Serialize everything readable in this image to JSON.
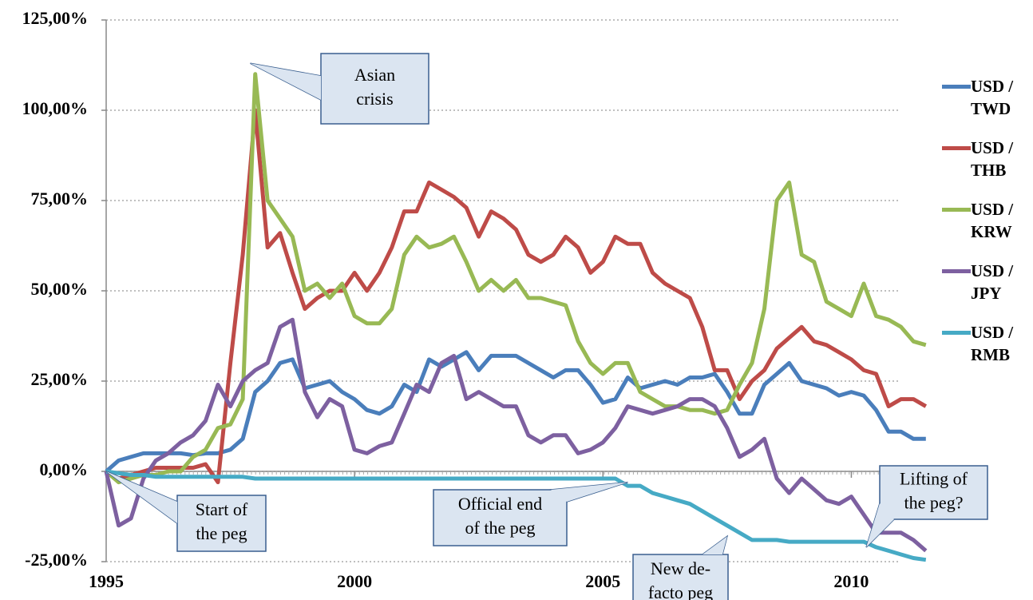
{
  "chart_data": {
    "type": "line",
    "x": [
      1995,
      1995.25,
      1995.5,
      1995.75,
      1996,
      1996.25,
      1996.5,
      1996.75,
      1997,
      1997.25,
      1997.5,
      1997.75,
      1998,
      1998.25,
      1998.5,
      1998.75,
      1999,
      1999.25,
      1999.5,
      1999.75,
      2000,
      2000.25,
      2000.5,
      2000.75,
      2001,
      2001.25,
      2001.5,
      2001.75,
      2002,
      2002.25,
      2002.5,
      2002.75,
      2003,
      2003.25,
      2003.5,
      2003.75,
      2004,
      2004.25,
      2004.5,
      2004.75,
      2005,
      2005.25,
      2005.5,
      2005.75,
      2006,
      2006.25,
      2006.5,
      2006.75,
      2007,
      2007.25,
      2007.5,
      2007.75,
      2008,
      2008.25,
      2008.5,
      2008.75,
      2009,
      2009.25,
      2009.5,
      2009.75,
      2010,
      2010.25,
      2010.5,
      2010.75,
      2011,
      2011.25,
      2011.5
    ],
    "series": [
      {
        "name": "USD / TWD",
        "color": "#4a7ebb",
        "values": [
          0,
          3,
          4,
          5,
          5,
          5,
          5,
          4.5,
          5,
          5,
          6,
          9,
          22,
          25,
          30,
          31,
          23,
          24,
          25,
          22,
          20,
          17,
          16,
          18,
          24,
          22,
          31,
          29,
          31,
          33,
          28,
          32,
          32,
          32,
          30,
          28,
          26,
          28,
          28,
          24,
          19,
          20,
          26,
          23,
          24,
          25,
          24,
          26,
          26,
          27,
          22,
          16,
          16,
          24,
          27,
          30,
          25,
          24,
          23,
          21,
          22,
          21,
          17,
          11,
          11,
          9,
          9
        ]
      },
      {
        "name": "USD / THB",
        "color": "#be4b48",
        "values": [
          0,
          -2,
          -1,
          0,
          1,
          1,
          1,
          1,
          2,
          -3,
          30,
          60,
          100,
          62,
          66,
          55,
          45,
          48,
          50,
          50,
          55,
          50,
          55,
          62,
          72,
          72,
          80,
          78,
          76,
          73,
          65,
          72,
          70,
          67,
          60,
          58,
          60,
          65,
          62,
          55,
          58,
          65,
          63,
          63,
          55,
          52,
          50,
          48,
          40,
          28,
          28,
          20,
          25,
          28,
          34,
          37,
          40,
          36,
          35,
          33,
          31,
          28,
          27,
          18,
          20,
          20,
          18
        ]
      },
      {
        "name": "USD / KRW",
        "color": "#98b954",
        "values": [
          0,
          -3,
          -2,
          -1,
          -1,
          0,
          0,
          4,
          6,
          12,
          13,
          20,
          110,
          75,
          70,
          65,
          50,
          52,
          48,
          52,
          43,
          41,
          41,
          45,
          60,
          65,
          62,
          63,
          65,
          58,
          50,
          53,
          50,
          53,
          48,
          48,
          47,
          46,
          36,
          30,
          27,
          30,
          30,
          22,
          20,
          18,
          18,
          17,
          17,
          16,
          17,
          24,
          30,
          45,
          75,
          80,
          60,
          58,
          47,
          45,
          43,
          52,
          43,
          42,
          40,
          36,
          35
        ]
      },
      {
        "name": "USD / JPY",
        "color": "#7d60a0",
        "values": [
          0,
          -15,
          -13,
          -2,
          3,
          5,
          8,
          10,
          14,
          24,
          18,
          25,
          28,
          30,
          40,
          42,
          22,
          15,
          20,
          18,
          6,
          5,
          7,
          8,
          16,
          24,
          22,
          30,
          32,
          20,
          22,
          20,
          18,
          18,
          10,
          8,
          10,
          10,
          5,
          6,
          8,
          12,
          18,
          17,
          16,
          17,
          18,
          20,
          20,
          18,
          12,
          4,
          6,
          9,
          -2,
          -6,
          -2,
          -5,
          -8,
          -9,
          -7,
          -12,
          -17,
          -17,
          -17,
          -19,
          -22
        ]
      },
      {
        "name": "USD / RMB",
        "color": "#46aac5",
        "values": [
          0,
          -0.5,
          -1,
          -1,
          -1.5,
          -1.5,
          -1.5,
          -1.5,
          -1.5,
          -1.5,
          -1.5,
          -1.5,
          -2,
          -2,
          -2,
          -2,
          -2,
          -2,
          -2,
          -2,
          -2,
          -2,
          -2,
          -2,
          -2,
          -2,
          -2,
          -2,
          -2,
          -2,
          -2,
          -2,
          -2,
          -2,
          -2,
          -2,
          -2,
          -2,
          -2,
          -2,
          -2,
          -2,
          -4,
          -4,
          -6,
          -7,
          -8,
          -9,
          -11,
          -13,
          -15,
          -17,
          -19,
          -19,
          -19,
          -19.5,
          -19.5,
          -19.5,
          -19.5,
          -19.5,
          -19.5,
          -19.5,
          -21,
          -22,
          -23,
          -24,
          -24.5
        ]
      }
    ],
    "xlim": [
      1995,
      2011.6
    ],
    "xticks": [
      1995,
      2000,
      2005,
      2010
    ],
    "ylim": [
      -25,
      125
    ],
    "yticks": [
      {
        "value": -25,
        "label": "-25,00%"
      },
      {
        "value": 0,
        "label": "0,00%"
      },
      {
        "value": 25,
        "label": "25,00%"
      },
      {
        "value": 50,
        "label": "50,00%"
      },
      {
        "value": 75,
        "label": "75,00%"
      },
      {
        "value": 100,
        "label": "100,00%"
      },
      {
        "value": 125,
        "label": "125,00%"
      }
    ],
    "grid": true,
    "legend": "right",
    "annotations": [
      {
        "lines": [
          "Asian",
          "crisis"
        ],
        "x": 1997.9,
        "y": 113
      },
      {
        "lines": [
          "Start of",
          "the peg"
        ],
        "x": 1995,
        "y": 0
      },
      {
        "lines": [
          "Official end",
          "of the peg"
        ],
        "x": 2005.5,
        "y": -3
      },
      {
        "lines": [
          "New de-",
          "facto peg"
        ],
        "x": 2007.5,
        "y": -18
      },
      {
        "lines": [
          "Lifting of",
          "the peg?"
        ],
        "x": 2010.3,
        "y": -21
      }
    ]
  }
}
